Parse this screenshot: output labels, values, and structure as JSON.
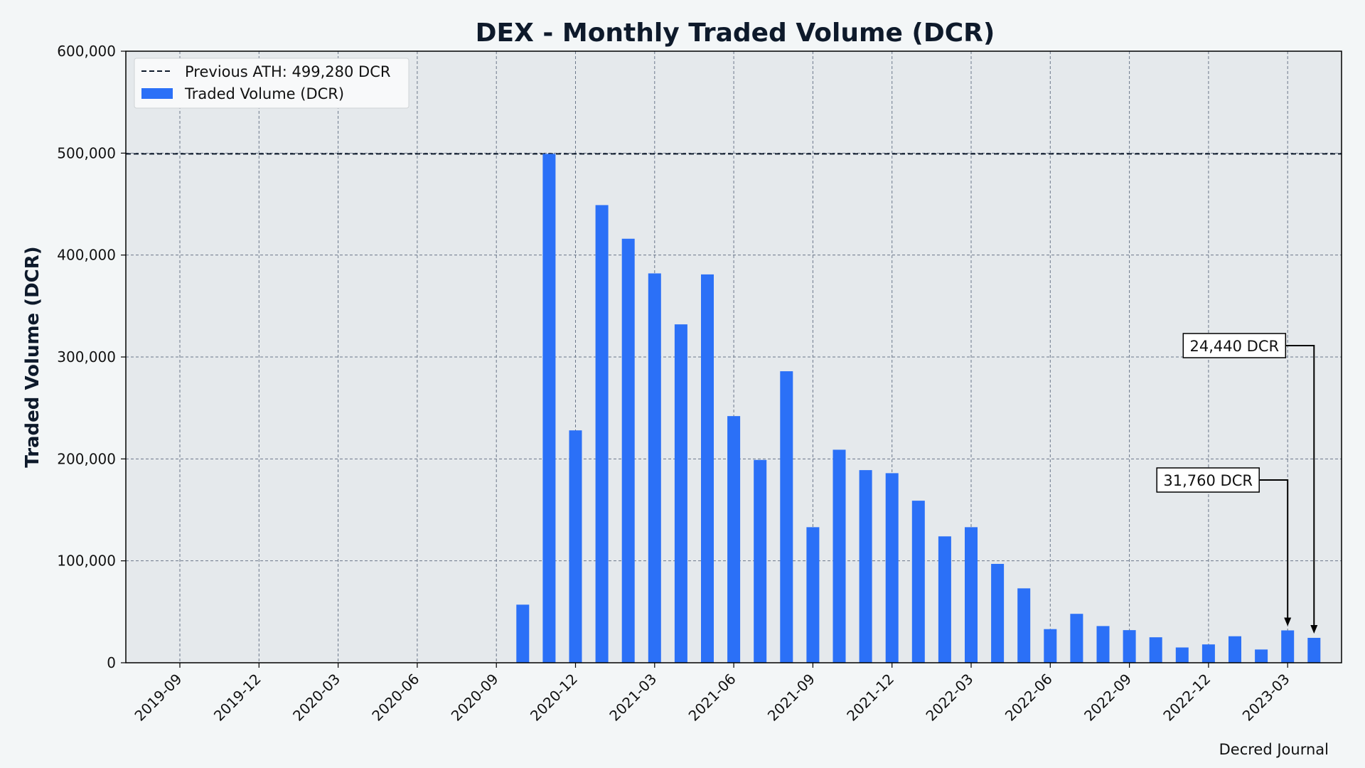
{
  "credit": "Decred Journal",
  "chart_data": {
    "type": "bar",
    "title": "DEX - Monthly Traded Volume (DCR)",
    "xlabel": "",
    "ylabel": "Traded Volume (DCR)",
    "ylim": [
      0,
      600000
    ],
    "yticks": [
      "0",
      "100,000",
      "200,000",
      "300,000",
      "400,000",
      "500,000",
      "600,000"
    ],
    "ytick_values": [
      0,
      100000,
      200000,
      300000,
      400000,
      500000,
      600000
    ],
    "xticks": [
      "2019-09",
      "2019-12",
      "2020-03",
      "2020-06",
      "2020-09",
      "2020-12",
      "2021-03",
      "2021-06",
      "2021-09",
      "2021-12",
      "2022-03",
      "2022-06",
      "2022-09",
      "2022-12",
      "2023-03"
    ],
    "x_start": "2019-09",
    "grid": true,
    "legend_placement": "top-left",
    "bar_color": "#2b70f7",
    "reference_line": {
      "value": 499280,
      "label": "Previous ATH: 499,280 DCR",
      "color": "#0e1a2b",
      "style": "dashed"
    },
    "series": [
      {
        "name": "Traded Volume (DCR)",
        "x": [
          "2020-10",
          "2020-11",
          "2020-12",
          "2021-01",
          "2021-02",
          "2021-03",
          "2021-04",
          "2021-05",
          "2021-06",
          "2021-07",
          "2021-08",
          "2021-09",
          "2021-10",
          "2021-11",
          "2021-12",
          "2022-01",
          "2022-02",
          "2022-03",
          "2022-04",
          "2022-05",
          "2022-06",
          "2022-07",
          "2022-08",
          "2022-09",
          "2022-10",
          "2022-11",
          "2022-12",
          "2023-01",
          "2023-02",
          "2023-03",
          "2023-04"
        ],
        "values": [
          57000,
          499280,
          228000,
          449000,
          416000,
          382000,
          332000,
          381000,
          242000,
          199000,
          286000,
          133000,
          209000,
          189000,
          186000,
          159000,
          124000,
          133000,
          97000,
          73000,
          33000,
          48000,
          36000,
          32000,
          25000,
          15000,
          18000,
          26000,
          13000,
          31760,
          24440
        ]
      }
    ],
    "annotations": [
      {
        "text": "31,760 DCR",
        "target_x": "2023-03",
        "target_value": 31760
      },
      {
        "text": "24,440 DCR",
        "target_x": "2023-04",
        "target_value": 24440
      }
    ]
  }
}
